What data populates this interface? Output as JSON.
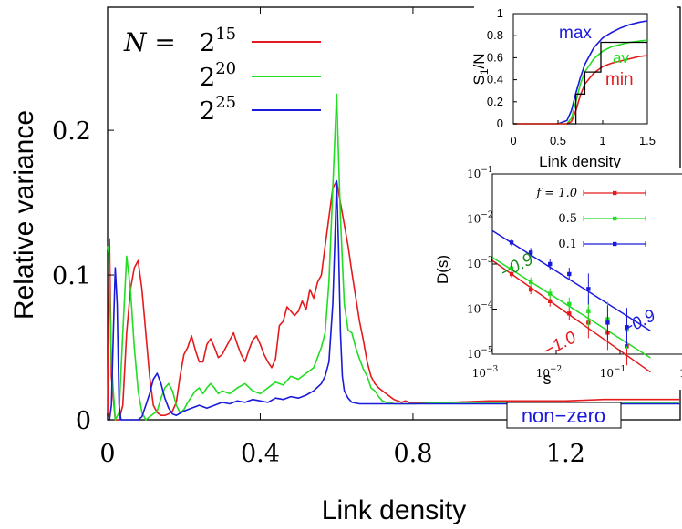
{
  "chart_data": [
    {
      "type": "line",
      "title": "",
      "xlabel": "Link density",
      "ylabel": "Relative variance",
      "xlim": [
        0,
        1.5
      ],
      "ylim": [
        0,
        0.285
      ],
      "xticks": [
        0,
        0.4,
        0.8,
        1.2
      ],
      "xtick_labels": [
        "0",
        "0.4",
        "0.8",
        "1.2"
      ],
      "yticks": [
        0,
        0.1,
        0.2
      ],
      "ytick_labels": [
        "0",
        "0.1",
        "0.2"
      ],
      "legend": {
        "placement": "top-left",
        "prefix": "N = ",
        "base": "2",
        "entries": [
          {
            "exponent": "15",
            "color": "#e41a1c"
          },
          {
            "exponent": "20",
            "color": "#22dd22"
          },
          {
            "exponent": "25",
            "color": "#1a1adb"
          }
        ]
      },
      "annotation": "non−zero",
      "series": [
        {
          "exponent": "15",
          "color": "#e41a1c",
          "x": [
            0,
            0.005,
            0.01,
            0.02,
            0.03,
            0.04,
            0.05,
            0.06,
            0.07,
            0.08,
            0.09,
            0.1,
            0.11,
            0.12,
            0.13,
            0.14,
            0.15,
            0.16,
            0.17,
            0.18,
            0.19,
            0.2,
            0.21,
            0.22,
            0.23,
            0.24,
            0.25,
            0.26,
            0.27,
            0.28,
            0.29,
            0.3,
            0.31,
            0.32,
            0.33,
            0.34,
            0.35,
            0.36,
            0.37,
            0.38,
            0.39,
            0.4,
            0.41,
            0.42,
            0.43,
            0.44,
            0.45,
            0.46,
            0.47,
            0.48,
            0.49,
            0.5,
            0.51,
            0.52,
            0.53,
            0.54,
            0.55,
            0.56,
            0.57,
            0.58,
            0.59,
            0.6,
            0.61,
            0.62,
            0.63,
            0.64,
            0.65,
            0.66,
            0.67,
            0.68,
            0.69,
            0.7,
            0.71,
            0.72,
            0.73,
            0.74,
            0.75,
            0.76,
            0.77,
            0.78,
            0.79,
            0.8,
            0.9,
            1.0,
            1.1,
            1.2,
            1.3,
            1.4,
            1.5
          ],
          "y": [
            0.002,
            0.125,
            0.03,
            0.0,
            0.0,
            0.01,
            0.06,
            0.09,
            0.105,
            0.11,
            0.09,
            0.06,
            0.03,
            0.01,
            0.005,
            0.003,
            0.003,
            0.004,
            0.006,
            0.012,
            0.03,
            0.045,
            0.05,
            0.058,
            0.048,
            0.04,
            0.04,
            0.052,
            0.056,
            0.05,
            0.043,
            0.045,
            0.05,
            0.055,
            0.06,
            0.052,
            0.045,
            0.04,
            0.048,
            0.055,
            0.058,
            0.052,
            0.045,
            0.04,
            0.036,
            0.042,
            0.065,
            0.068,
            0.078,
            0.075,
            0.072,
            0.075,
            0.082,
            0.076,
            0.09,
            0.084,
            0.095,
            0.1,
            0.12,
            0.14,
            0.16,
            0.165,
            0.15,
            0.135,
            0.12,
            0.102,
            0.085,
            0.068,
            0.055,
            0.04,
            0.03,
            0.025,
            0.022,
            0.02,
            0.018,
            0.016,
            0.014,
            0.013,
            0.012,
            0.013,
            0.012,
            0.012,
            0.012,
            0.013,
            0.013,
            0.013,
            0.014,
            0.014,
            0.014
          ]
        },
        {
          "exponent": "20",
          "color": "#22dd22",
          "x": [
            0,
            0.003,
            0.01,
            0.02,
            0.03,
            0.04,
            0.05,
            0.06,
            0.07,
            0.08,
            0.09,
            0.1,
            0.11,
            0.12,
            0.13,
            0.14,
            0.15,
            0.16,
            0.17,
            0.18,
            0.19,
            0.2,
            0.21,
            0.22,
            0.23,
            0.24,
            0.25,
            0.26,
            0.27,
            0.28,
            0.29,
            0.3,
            0.32,
            0.34,
            0.36,
            0.38,
            0.4,
            0.42,
            0.44,
            0.46,
            0.48,
            0.5,
            0.52,
            0.54,
            0.56,
            0.57,
            0.58,
            0.59,
            0.6,
            0.61,
            0.62,
            0.63,
            0.64,
            0.65,
            0.66,
            0.67,
            0.68,
            0.69,
            0.7,
            0.71,
            0.72,
            0.73,
            0.74,
            0.75,
            0.76,
            0.78,
            0.8,
            0.9,
            1.0,
            1.1,
            1.2,
            1.3,
            1.4,
            1.5
          ],
          "y": [
            0.12,
            0.115,
            0.04,
            0.0,
            0.005,
            0.06,
            0.113,
            0.09,
            0.05,
            0.02,
            0.005,
            0.0,
            0.002,
            0.004,
            0.006,
            0.015,
            0.022,
            0.025,
            0.02,
            0.01,
            0.005,
            0.007,
            0.012,
            0.016,
            0.02,
            0.022,
            0.018,
            0.022,
            0.025,
            0.022,
            0.018,
            0.02,
            0.018,
            0.022,
            0.025,
            0.02,
            0.018,
            0.022,
            0.026,
            0.024,
            0.03,
            0.028,
            0.032,
            0.036,
            0.05,
            0.06,
            0.095,
            0.16,
            0.225,
            0.14,
            0.08,
            0.062,
            0.06,
            0.05,
            0.042,
            0.035,
            0.03,
            0.022,
            0.02,
            0.016,
            0.013,
            0.012,
            0.012,
            0.011,
            0.011,
            0.011,
            0.011,
            0.012,
            0.012,
            0.012,
            0.012,
            0.012,
            0.012,
            0.012
          ]
        },
        {
          "exponent": "25",
          "color": "#1a1adb",
          "x": [
            0,
            0.005,
            0.01,
            0.015,
            0.02,
            0.025,
            0.03,
            0.035,
            0.04,
            0.05,
            0.06,
            0.07,
            0.08,
            0.09,
            0.1,
            0.11,
            0.12,
            0.13,
            0.14,
            0.15,
            0.16,
            0.17,
            0.18,
            0.2,
            0.22,
            0.24,
            0.26,
            0.28,
            0.3,
            0.32,
            0.34,
            0.36,
            0.38,
            0.4,
            0.42,
            0.44,
            0.46,
            0.48,
            0.5,
            0.52,
            0.54,
            0.56,
            0.57,
            0.58,
            0.59,
            0.595,
            0.6,
            0.605,
            0.61,
            0.615,
            0.62,
            0.63,
            0.64,
            0.66,
            0.7,
            0.8,
            0.9,
            1.0,
            1.1,
            1.2,
            1.3,
            1.4,
            1.5
          ],
          "y": [
            0.0,
            0.0,
            0.01,
            0.06,
            0.105,
            0.08,
            0.01,
            0.0,
            0.0,
            0.0,
            0.0,
            0.0,
            0.0,
            0.002,
            0.01,
            0.018,
            0.028,
            0.032,
            0.025,
            0.015,
            0.008,
            0.004,
            0.003,
            0.006,
            0.008,
            0.01,
            0.008,
            0.01,
            0.012,
            0.011,
            0.013,
            0.012,
            0.014,
            0.013,
            0.012,
            0.015,
            0.014,
            0.016,
            0.015,
            0.017,
            0.02,
            0.025,
            0.03,
            0.04,
            0.08,
            0.12,
            0.165,
            0.12,
            0.06,
            0.03,
            0.02,
            0.015,
            0.012,
            0.011,
            0.011,
            0.011,
            0.011,
            0.011,
            0.011,
            0.011,
            0.011,
            0.011,
            0.011
          ]
        }
      ]
    },
    {
      "type": "line",
      "title": "",
      "xlabel": "Link density",
      "ylabel_main": "S",
      "ylabel_sub": "1",
      "ylabel_tail": "/N",
      "xlim": [
        0,
        1.5
      ],
      "ylim": [
        0,
        1
      ],
      "xticks": [
        0,
        0.5,
        1,
        1.5
      ],
      "xtick_labels": [
        "0",
        "0.5",
        "1",
        "1.5"
      ],
      "yticks": [
        0,
        0.2,
        0.4,
        0.6,
        0.8,
        1
      ],
      "ytick_labels": [
        "0",
        "0.2",
        "0.4",
        "0.6",
        "0.8",
        "1"
      ],
      "labels": [
        {
          "text": "max",
          "color": "#1a1adb"
        },
        {
          "text": "av",
          "color": "#22dd22"
        },
        {
          "text": "min",
          "color": "#e41a1c"
        }
      ],
      "series": [
        {
          "label": "max",
          "color": "#1a1adb",
          "x": [
            0,
            0.5,
            0.6,
            0.65,
            0.7,
            0.75,
            0.8,
            0.9,
            1.0,
            1.1,
            1.2,
            1.3,
            1.4,
            1.5
          ],
          "y": [
            0,
            0,
            0.03,
            0.12,
            0.28,
            0.42,
            0.54,
            0.69,
            0.78,
            0.83,
            0.87,
            0.9,
            0.92,
            0.935
          ]
        },
        {
          "label": "av",
          "color": "#22dd22",
          "x": [
            0,
            0.6,
            0.65,
            0.7,
            0.75,
            0.8,
            0.9,
            1.0,
            1.1,
            1.2,
            1.3,
            1.4,
            1.5
          ],
          "y": [
            0,
            0,
            0.05,
            0.2,
            0.36,
            0.47,
            0.59,
            0.66,
            0.7,
            0.72,
            0.74,
            0.75,
            0.76
          ]
        },
        {
          "label": "min",
          "color": "#e41a1c",
          "x": [
            0,
            0.6,
            0.65,
            0.7,
            0.75,
            0.8,
            0.9,
            1.0,
            1.1,
            1.2,
            1.3,
            1.4,
            1.5
          ],
          "y": [
            0,
            0,
            0.02,
            0.12,
            0.26,
            0.36,
            0.46,
            0.52,
            0.55,
            0.57,
            0.59,
            0.61,
            0.62
          ]
        },
        {
          "label": "",
          "color": "#000000",
          "x": [
            0.6,
            0.7,
            0.7,
            0.8,
            0.8,
            0.98,
            0.98,
            1.5
          ],
          "y": [
            0,
            0,
            0.27,
            0.27,
            0.47,
            0.47,
            0.74,
            0.74
          ]
        }
      ]
    },
    {
      "type": "scatter",
      "title": "",
      "xlabel": "s",
      "ylabel": "D(s)",
      "xscale": "log",
      "yscale": "log",
      "xlim": [
        0.001,
        1
      ],
      "ylim": [
        1e-05,
        0.1
      ],
      "xtick_base": "10",
      "xtick_exps": [
        "−3",
        "−2",
        "−1"
      ],
      "xtick_partial": "10",
      "ytick_base": "10",
      "ytick_exps": [
        "−5",
        "−4",
        "−3",
        "−2",
        "−1"
      ],
      "legend": {
        "placement": "top-right",
        "entries": [
          {
            "label": "f = 1.0",
            "color": "#e41a1c"
          },
          {
            "label": "0.5",
            "color": "#22dd22"
          },
          {
            "label": "0.1",
            "color": "#1a1adb"
          }
        ]
      },
      "slope_labels": [
        {
          "text": "−0.9",
          "color": "#1a8a1a"
        },
        {
          "text": "−0.9",
          "color": "#1a1adb"
        },
        {
          "text": "−1.0",
          "color": "#e41a1c"
        }
      ],
      "series": [
        {
          "label": "f = 1.0",
          "color": "#e41a1c",
          "x": [
            0.002,
            0.004,
            0.008,
            0.016,
            0.032,
            0.064,
            0.128
          ],
          "y": [
            0.0006,
            0.00027,
            0.00015,
            8e-05,
            5e-05,
            3e-05,
            1.5e-05
          ],
          "fit": {
            "x": [
              0.001,
              0.3
            ],
            "y": [
              0.0012,
              4e-06
            ]
          }
        },
        {
          "label": "0.5",
          "color": "#22dd22",
          "x": [
            0.002,
            0.004,
            0.008,
            0.016,
            0.032,
            0.064,
            0.128
          ],
          "y": [
            0.0008,
            0.0004,
            0.00022,
            0.00013,
            9e-05,
            6e-05,
            3.5e-05
          ],
          "fit": {
            "x": [
              0.001,
              0.3
            ],
            "y": [
              0.0014,
              8.3e-06
            ]
          }
        },
        {
          "label": "0.1",
          "color": "#1a1adb",
          "x": [
            0.002,
            0.004,
            0.008,
            0.016,
            0.032,
            0.064,
            0.128
          ],
          "y": [
            0.003,
            0.0018,
            0.001,
            0.0006,
            0.00028,
            5e-05,
            4e-05
          ],
          "fit": {
            "x": [
              0.001,
              0.3
            ],
            "y": [
              0.0055,
              3.3e-05
            ]
          }
        }
      ]
    }
  ]
}
